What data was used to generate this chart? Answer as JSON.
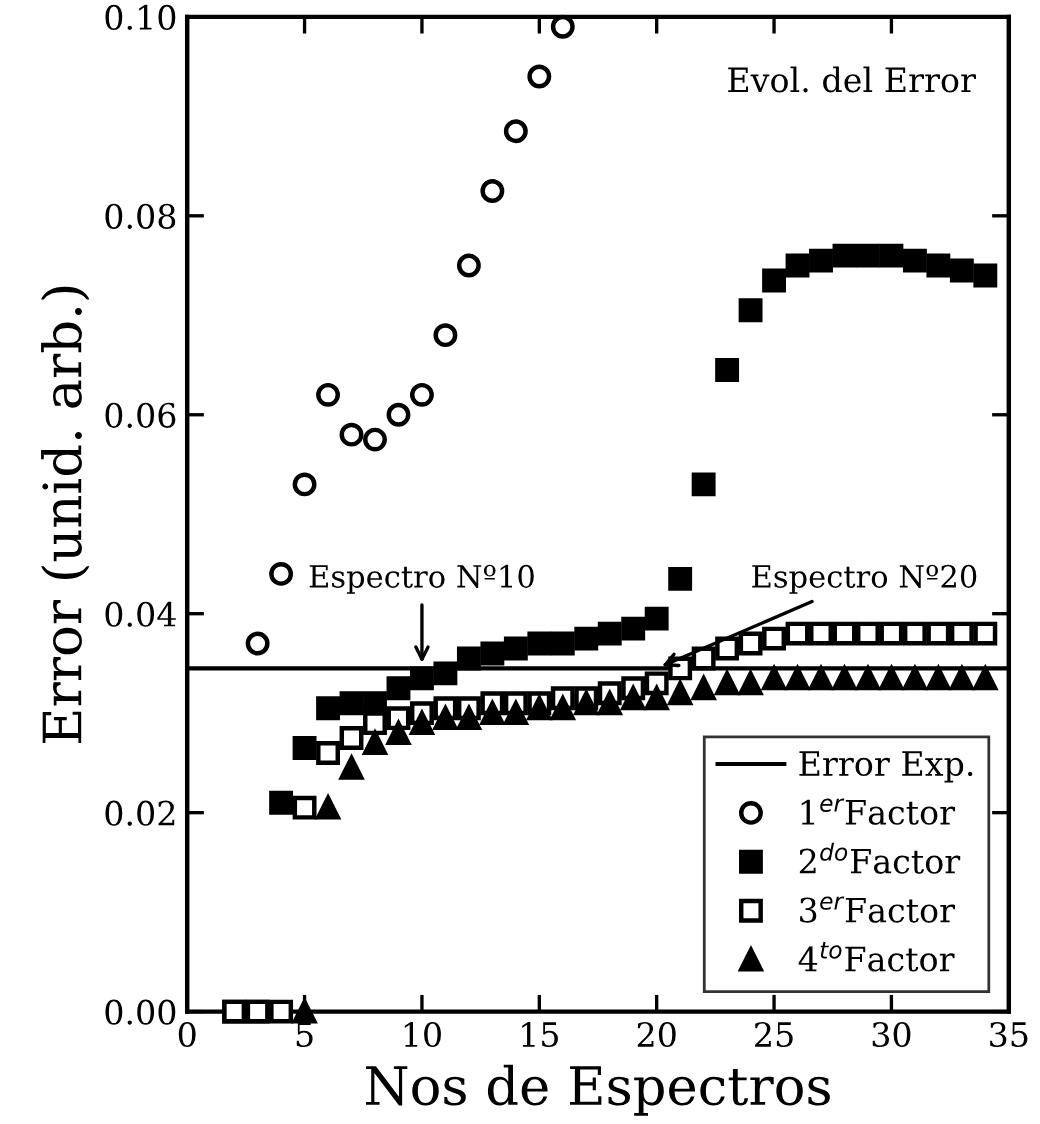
{
  "chart_data": {
    "type": "scatter",
    "title": "Evol. del Error",
    "xlabel": "Nos de Espectros",
    "ylabel": "Error (unid. arb.)",
    "xlim": [
      0,
      35
    ],
    "xticks": [
      0,
      5,
      10,
      15,
      20,
      25,
      30,
      35
    ],
    "ylim": [
      0,
      0.1
    ],
    "yticks": [
      {
        "value": 0,
        "label": "0.00"
      },
      {
        "value": 0.02,
        "label": "0.02"
      },
      {
        "value": 0.04,
        "label": "0.04"
      },
      {
        "value": 0.06,
        "label": "0.06"
      },
      {
        "value": 0.08,
        "label": "0.08"
      },
      {
        "value": 0.1,
        "label": "0.10"
      }
    ],
    "grid": false,
    "legend": "bottom right",
    "ref_lines": [
      {
        "axis": "y",
        "value": 0.0345,
        "label": "Error Exp.",
        "color": "#000000",
        "line_style": "solid"
      }
    ],
    "annotations": [
      {
        "text": "Espectro Nº10",
        "x": 10,
        "y": 0.0345
      },
      {
        "text": "Espectro Nº20",
        "x": 20,
        "y": 0.0345
      }
    ],
    "series": [
      {
        "name": "1$^{er}$Factor",
        "color": "#000000",
        "marker": "circle_open",
        "x": [
          3,
          4,
          5,
          6,
          7,
          8,
          9,
          10,
          11,
          12,
          13,
          14,
          15,
          16
        ],
        "values": [
          0.037,
          0.044,
          0.053,
          0.062,
          0.058,
          0.0575,
          0.06,
          0.062,
          0.068,
          0.075,
          0.0825,
          0.0885,
          0.094,
          0.099
        ]
      },
      {
        "name": "2$^{do}$Factor",
        "color": "#000000",
        "marker": "square",
        "x": [
          2,
          3,
          4,
          5,
          6,
          7,
          8,
          9,
          10,
          11,
          12,
          13,
          14,
          15,
          16,
          17,
          18,
          19,
          20,
          21,
          22,
          23,
          24,
          25,
          26,
          27,
          28,
          29,
          30,
          31,
          32,
          33,
          34
        ],
        "values": [
          0,
          0,
          0.021,
          0.0265,
          0.0305,
          0.031,
          0.031,
          0.0325,
          0.0335,
          0.034,
          0.0355,
          0.036,
          0.0365,
          0.037,
          0.037,
          0.0375,
          0.038,
          0.0385,
          0.0395,
          0.0435,
          0.053,
          0.0645,
          0.0705,
          0.0735,
          0.075,
          0.0755,
          0.076,
          0.076,
          0.076,
          0.0755,
          0.075,
          0.0745,
          0.074
        ]
      },
      {
        "name": "3$^{er}$Factor",
        "color": "#000000",
        "marker": "square_open",
        "x": [
          2,
          3,
          4,
          5,
          6,
          7,
          8,
          9,
          10,
          11,
          12,
          13,
          14,
          15,
          16,
          17,
          18,
          19,
          20,
          21,
          22,
          23,
          24,
          25,
          26,
          27,
          28,
          29,
          30,
          31,
          32,
          33,
          34
        ],
        "values": [
          0,
          0,
          0,
          0.0205,
          0.026,
          0.0275,
          0.029,
          0.0295,
          0.03,
          0.0305,
          0.0305,
          0.031,
          0.031,
          0.031,
          0.0315,
          0.0315,
          0.032,
          0.0325,
          0.033,
          0.0345,
          0.0355,
          0.0365,
          0.037,
          0.0375,
          0.038,
          0.038,
          0.038,
          0.038,
          0.038,
          0.038,
          0.038,
          0.038,
          0.038
        ]
      },
      {
        "name": "4$^{to}$Factor",
        "color": "#000000",
        "marker": "triangle",
        "x": [
          5,
          6,
          7,
          8,
          9,
          10,
          11,
          12,
          13,
          14,
          15,
          16,
          17,
          18,
          19,
          20,
          21,
          22,
          23,
          24,
          25,
          26,
          27,
          28,
          29,
          30,
          31,
          32,
          33,
          34
        ],
        "values": [
          0,
          0.0205,
          0.0245,
          0.027,
          0.028,
          0.029,
          0.0295,
          0.0295,
          0.03,
          0.03,
          0.0305,
          0.0305,
          0.031,
          0.031,
          0.0315,
          0.0315,
          0.032,
          0.0325,
          0.033,
          0.033,
          0.0335,
          0.0335,
          0.0335,
          0.0335,
          0.0335,
          0.0335,
          0.0335,
          0.0335,
          0.0335,
          0.0335
        ]
      }
    ]
  }
}
